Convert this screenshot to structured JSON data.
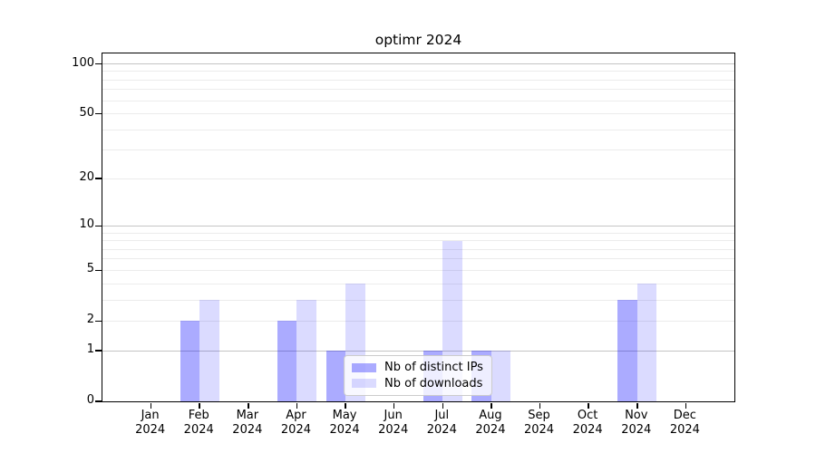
{
  "chart_data": {
    "type": "bar",
    "title": "optimr 2024",
    "categories": [
      "Jan",
      "Feb",
      "Mar",
      "Apr",
      "May",
      "Jun",
      "Jul",
      "Aug",
      "Sep",
      "Oct",
      "Nov",
      "Dec"
    ],
    "category_year": "2024",
    "series": [
      {
        "name": "Nb of distinct IPs",
        "color": "rgba(0,0,255,0.33)",
        "values": [
          0,
          2,
          0,
          2,
          1,
          0,
          1,
          1,
          0,
          0,
          3,
          0
        ]
      },
      {
        "name": "Nb of downloads",
        "color": "rgba(0,0,255,0.14)",
        "values": [
          0,
          3,
          0,
          3,
          4,
          0,
          8,
          1,
          0,
          0,
          4,
          0
        ]
      }
    ],
    "yscale": "log1p",
    "ylim": [
      0,
      115.5
    ],
    "yticks": [
      {
        "value": 0,
        "label": "0"
      },
      {
        "value": 1,
        "label": "1"
      },
      {
        "value": 2,
        "label": "2"
      },
      {
        "value": 5,
        "label": "5"
      },
      {
        "value": 10,
        "label": "10"
      },
      {
        "value": 20,
        "label": "20"
      },
      {
        "value": 50,
        "label": "50"
      },
      {
        "value": 100,
        "label": "100"
      }
    ],
    "major_grid_values": [
      1,
      10,
      100
    ],
    "minor_grid_values": [
      2,
      3,
      4,
      5,
      6,
      7,
      8,
      9,
      20,
      30,
      40,
      50,
      60,
      70,
      80,
      90
    ],
    "legend_position": "lower center",
    "grid": true
  },
  "colors": {
    "grid_major": "#c4c4c4",
    "grid_minor": "#ececec",
    "spine": "#000000",
    "legend_border": "#cccccc",
    "legend_background": "rgba(255,255,255,0.8)",
    "text": "#000000",
    "background": "#ffffff"
  }
}
